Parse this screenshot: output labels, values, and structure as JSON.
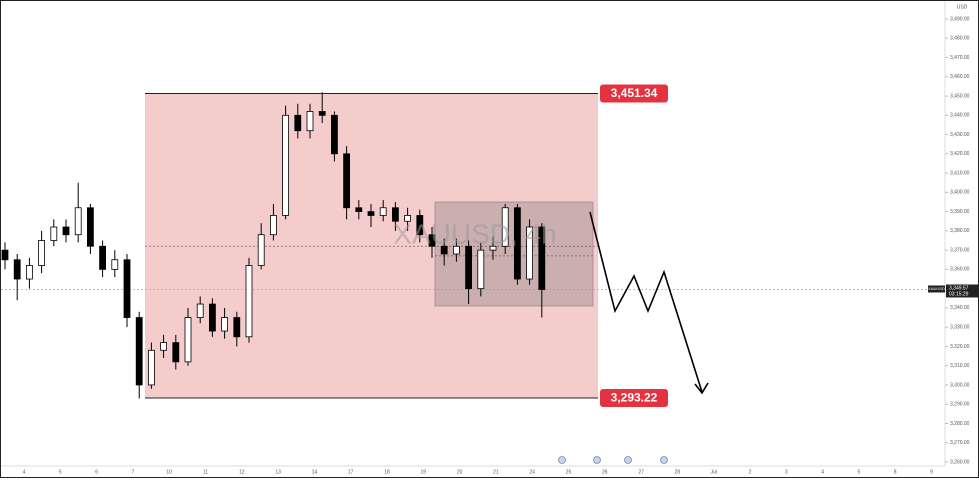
{
  "chart_data": {
    "type": "candlestick",
    "watermark": "XAUUSD, 4h",
    "currency": "USD",
    "symbol_tag": "XAUUSD",
    "countdown": "03:15:29",
    "x_labels": [
      "4",
      "5",
      "6",
      "7",
      "10",
      "11",
      "12",
      "13",
      "14",
      "17",
      "18",
      "19",
      "20",
      "21",
      "24",
      "25",
      "26",
      "27",
      "28",
      "Jul",
      "2",
      "3",
      "4",
      "5",
      "8",
      "9"
    ],
    "open": [
      3370,
      3365,
      3355,
      3362,
      3375,
      3382,
      3378,
      3392,
      3372,
      3360,
      3365,
      3335,
      3300,
      3318,
      3322,
      3312,
      3335,
      3342,
      3328,
      3335,
      3325,
      3362,
      3378,
      3388,
      3440,
      3432,
      3442,
      3440,
      3420,
      3392,
      3390,
      3388,
      3392,
      3385,
      3388,
      3378,
      3372,
      3368,
      3372,
      3350,
      3370,
      3372,
      3392,
      3355,
      3382
    ],
    "high": [
      3374,
      3368,
      3366,
      3380,
      3386,
      3386,
      3405,
      3394,
      3375,
      3370,
      3368,
      3338,
      3322,
      3326,
      3326,
      3340,
      3346,
      3345,
      3340,
      3338,
      3366,
      3384,
      3394,
      3445,
      3446,
      3446,
      3452,
      3442,
      3424,
      3396,
      3394,
      3396,
      3395,
      3392,
      3391,
      3382,
      3376,
      3376,
      3375,
      3374,
      3377,
      3394,
      3394,
      3386,
      3384
    ],
    "low": [
      3360,
      3344,
      3350,
      3358,
      3372,
      3374,
      3374,
      3368,
      3356,
      3356,
      3330,
      3293,
      3298,
      3314,
      3308,
      3310,
      3332,
      3325,
      3324,
      3320,
      3322,
      3360,
      3375,
      3386,
      3428,
      3428,
      3436,
      3416,
      3386,
      3386,
      3382,
      3385,
      3380,
      3380,
      3374,
      3366,
      3362,
      3364,
      3342,
      3346,
      3365,
      3368,
      3352,
      3352,
      3335
    ],
    "close": [
      3365,
      3355,
      3362,
      3375,
      3382,
      3378,
      3392,
      3372,
      3360,
      3365,
      3335,
      3300,
      3318,
      3322,
      3312,
      3335,
      3342,
      3328,
      3335,
      3325,
      3362,
      3378,
      3388,
      3440,
      3432,
      3442,
      3440,
      3420,
      3392,
      3390,
      3388,
      3392,
      3385,
      3388,
      3378,
      3372,
      3368,
      3372,
      3350,
      3370,
      3372,
      3392,
      3355,
      3382,
      3349.57
    ],
    "last_price": {
      "value": 3349.57,
      "label": "3,349.57"
    },
    "levels": [
      {
        "value": 3451.34,
        "label": "3,451.34"
      },
      {
        "value": 3293.22,
        "label": "3,293.22"
      }
    ],
    "range_box": {
      "top": 3395,
      "bottom": 3341
    },
    "midlines": [
      3372,
      3367
    ],
    "ylim": [
      3260,
      3490
    ],
    "yticks": [
      {
        "value": 3260,
        "label": "3,260.00"
      },
      {
        "value": 3270,
        "label": "3,270.00"
      },
      {
        "value": 3280,
        "label": "3,280.00"
      },
      {
        "value": 3290,
        "label": "3,290.00"
      },
      {
        "value": 3300,
        "label": "3,300.00"
      },
      {
        "value": 3310,
        "label": "3,310.00"
      },
      {
        "value": 3320,
        "label": "3,320.00"
      },
      {
        "value": 3330,
        "label": "3,330.00"
      },
      {
        "value": 3340,
        "label": "3,340.00"
      },
      {
        "value": 3350,
        "label": "3,350.00"
      },
      {
        "value": 3360,
        "label": "3,360.00"
      },
      {
        "value": 3370,
        "label": "3,370.00"
      },
      {
        "value": 3380,
        "label": "3,380.00"
      },
      {
        "value": 3390,
        "label": "3,390.00"
      },
      {
        "value": 3400,
        "label": "3,400.00"
      },
      {
        "value": 3410,
        "label": "3,410.00"
      },
      {
        "value": 3420,
        "label": "3,420.00"
      },
      {
        "value": 3430,
        "label": "3,430.00"
      },
      {
        "value": 3440,
        "label": "3,440.00"
      },
      {
        "value": 3450,
        "label": "3,450.00"
      },
      {
        "value": 3460,
        "label": "3,460.00"
      },
      {
        "value": 3470,
        "label": "3,470.00"
      },
      {
        "value": 3480,
        "label": "3,480.00"
      },
      {
        "value": 3490,
        "label": "3,490.00"
      }
    ],
    "up_color": "#ffffff",
    "down_color": "#000000",
    "box_color": "#f4c7c7",
    "label_color": "#e5323f"
  }
}
